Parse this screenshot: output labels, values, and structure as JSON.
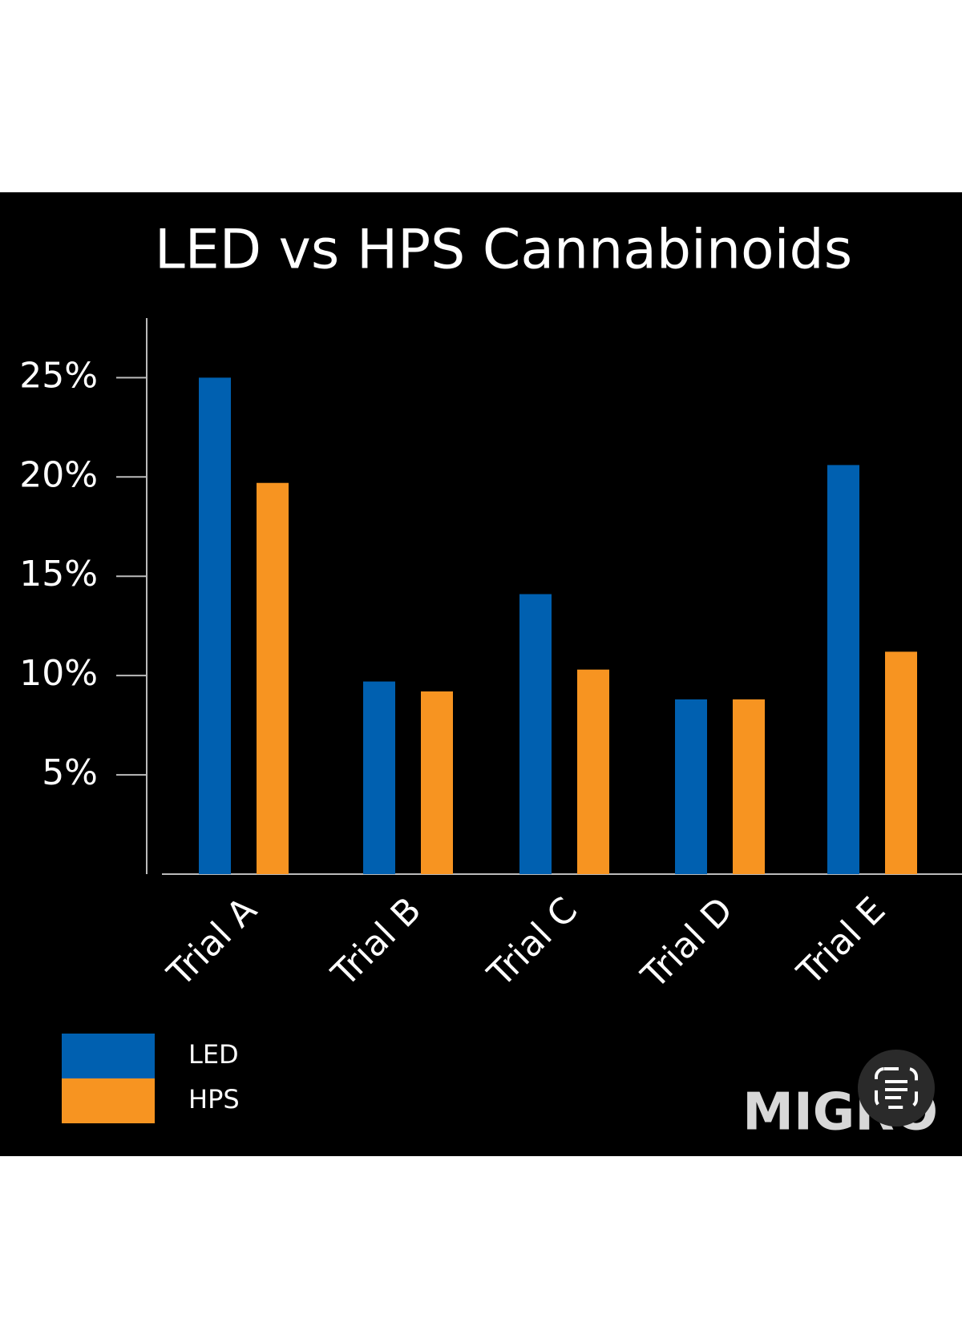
{
  "chart_data": {
    "type": "bar",
    "title": "LED vs HPS Cannabinoids",
    "categories": [
      "Trial A",
      "Trial B",
      "Trial C",
      "Trial D",
      "Trial E"
    ],
    "series": [
      {
        "name": "LED",
        "color": "#0060b0",
        "values": [
          25,
          9.7,
          14.1,
          8.8,
          20.6
        ]
      },
      {
        "name": "HPS",
        "color": "#f79421",
        "values": [
          19.7,
          9.2,
          10.3,
          8.8,
          11.2
        ]
      }
    ],
    "ylim": [
      0,
      28
    ],
    "yticks": [
      {
        "value": 5,
        "label": "5%"
      },
      {
        "value": 10,
        "label": "10%"
      },
      {
        "value": 15,
        "label": "15%"
      },
      {
        "value": 20,
        "label": "20%"
      },
      {
        "value": 25,
        "label": "25%"
      }
    ],
    "grid": false
  },
  "watermark": "MIGRO"
}
